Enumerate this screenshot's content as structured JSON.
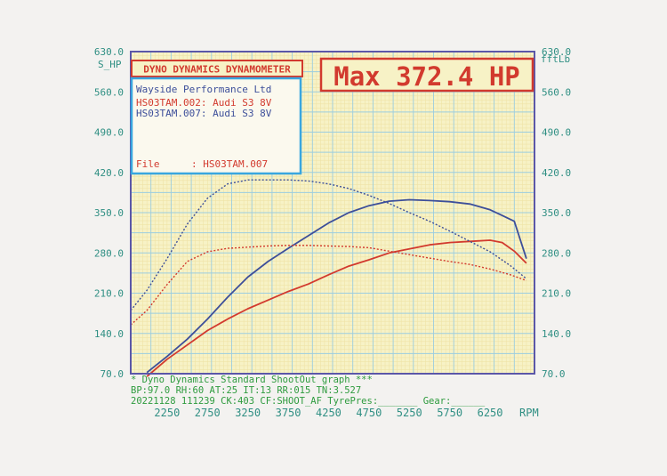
{
  "header": {
    "brand": "DYNO DYNAMICS DYNAMOMETER",
    "max_readout": "Max 372.4 HP"
  },
  "legend": {
    "shop": "Wayside Performance Ltd",
    "runs": [
      {
        "label": "HS03TAM.002: Audi S3 8V",
        "color": "#d23a2e"
      },
      {
        "label": "HS03TAM.007: Audi S3 8V",
        "color": "#3d4f9a"
      }
    ],
    "file_label": "File",
    "file_value": ": HS03TAM.007"
  },
  "footer": {
    "line1": "* Dyno Dynamics Standard ShootOut graph ***",
    "line2": "BP:97.0  RH:60 AT:25 IT:13  RR:015 TN:3.527",
    "line3": "20221128 111239 CK:403 CF:SHOOT_AF TyrePres:_______ Gear:______"
  },
  "colors": {
    "frame": "#5b57a8",
    "grid": "#ead87a",
    "grid_minor": "#efe3a6",
    "axis_text": "#2f8f83",
    "title_red": "#d23a2e",
    "legend_border": "#39a6df",
    "run_002": "#d23a2e",
    "run_007": "#3d4f9a"
  },
  "chart_data": {
    "type": "line",
    "title": "Max 372.4 HP",
    "ylabel_left": "S_HP",
    "ylabel_right": "fftLb",
    "xunit": "RPM",
    "x_ticks": [
      "2250",
      "2750",
      "3250",
      "3750",
      "4250",
      "4750",
      "5250",
      "5750",
      "6250"
    ],
    "y_ticks_left": [
      "70.0",
      "140.0",
      "210.0",
      "280.0",
      "350.0",
      "420.0",
      "490.0",
      "560.0",
      "630.0"
    ],
    "y_ticks_right": [
      "70.0",
      "140.0",
      "210.0",
      "280.0",
      "350.0",
      "420.0",
      "490.0",
      "560.0",
      "630.0"
    ],
    "xlim": [
      1800,
      6800
    ],
    "ylim": [
      70,
      630
    ],
    "grid": true,
    "series": [
      {
        "name": "HS03TAM.002 Power",
        "run": "HS03TAM.002",
        "color": "#d23a2e",
        "style": "solid",
        "x": [
          2000,
          2250,
          2500,
          2750,
          3000,
          3250,
          3500,
          3750,
          4000,
          4250,
          4500,
          4750,
          5000,
          5250,
          5500,
          5750,
          6000,
          6250,
          6400,
          6550,
          6700
        ],
        "y": [
          65,
          95,
          120,
          145,
          165,
          183,
          198,
          213,
          226,
          242,
          257,
          268,
          280,
          287,
          294,
          298,
          300,
          302,
          298,
          283,
          262
        ]
      },
      {
        "name": "HS03TAM.007 Power",
        "run": "HS03TAM.007",
        "color": "#3d4f9a",
        "style": "solid",
        "x": [
          2000,
          2250,
          2500,
          2750,
          3000,
          3250,
          3500,
          3750,
          4000,
          4250,
          4500,
          4750,
          5000,
          5250,
          5500,
          5750,
          6000,
          6250,
          6400,
          6550,
          6700
        ],
        "y": [
          72,
          100,
          130,
          165,
          203,
          238,
          265,
          288,
          310,
          332,
          350,
          362,
          370,
          372.4,
          371,
          369,
          365,
          355,
          345,
          335,
          270
        ]
      },
      {
        "name": "HS03TAM.002 Torque",
        "run": "HS03TAM.002",
        "color": "#d23a2e",
        "style": "dotted",
        "x": [
          1800,
          2000,
          2250,
          2500,
          2750,
          3000,
          3250,
          3500,
          3750,
          4000,
          4250,
          4500,
          4750,
          5000,
          5250,
          5500,
          5750,
          6000,
          6250,
          6500,
          6700
        ],
        "y": [
          155,
          180,
          225,
          265,
          282,
          288,
          290,
          292,
          293,
          293,
          292,
          291,
          289,
          283,
          277,
          271,
          265,
          260,
          252,
          242,
          232
        ]
      },
      {
        "name": "HS03TAM.007 Torque",
        "run": "HS03TAM.007",
        "color": "#3d4f9a",
        "style": "dotted",
        "x": [
          1800,
          2000,
          2250,
          2500,
          2750,
          3000,
          3250,
          3500,
          3750,
          4000,
          4250,
          4500,
          4750,
          5000,
          5250,
          5500,
          5750,
          6000,
          6250,
          6500,
          6700
        ],
        "y": [
          180,
          215,
          270,
          330,
          375,
          400,
          407,
          407,
          407,
          405,
          400,
          392,
          380,
          366,
          350,
          335,
          318,
          300,
          282,
          258,
          235
        ]
      }
    ]
  }
}
